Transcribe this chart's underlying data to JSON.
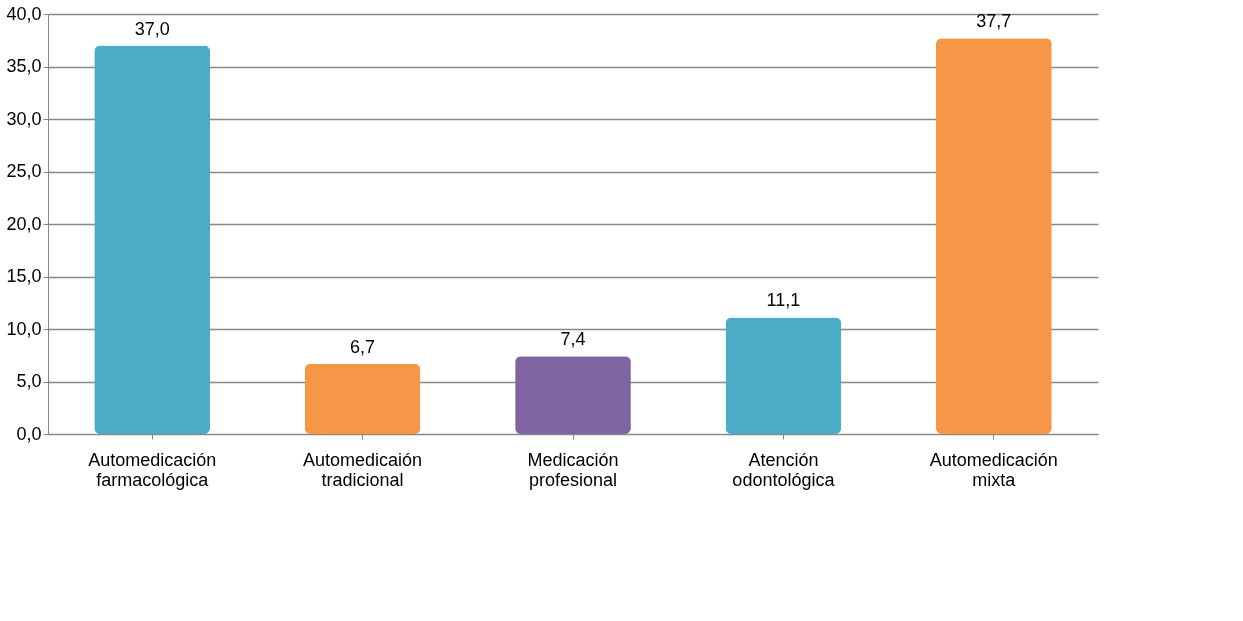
{
  "chart_data": {
    "type": "bar",
    "categories": [
      "Automedicación farmacológica",
      "Automedicaión tradicional",
      "Medicación profesional",
      "Atención odontológica",
      "Automedicación mixta"
    ],
    "values": [
      37.0,
      6.7,
      7.4,
      11.1,
      37.7
    ],
    "colors": [
      "#4bacc6",
      "#f79646",
      "#8064a2",
      "#4bacc6",
      "#f79646"
    ],
    "value_labels": [
      "37,0",
      "6,7",
      "7,4",
      "11,1",
      "37,7"
    ],
    "ylim": [
      0,
      40
    ],
    "yticks": [
      {
        "value": 0,
        "label": "0,0"
      },
      {
        "value": 5,
        "label": "5,0"
      },
      {
        "value": 10,
        "label": "10,0"
      },
      {
        "value": 15,
        "label": "15,0"
      },
      {
        "value": 20,
        "label": "20,0"
      },
      {
        "value": 25,
        "label": "25,0"
      },
      {
        "value": 30,
        "label": "30,0"
      },
      {
        "value": 35,
        "label": "35,0"
      },
      {
        "value": 40,
        "label": "40,0"
      }
    ],
    "grid": "y"
  }
}
